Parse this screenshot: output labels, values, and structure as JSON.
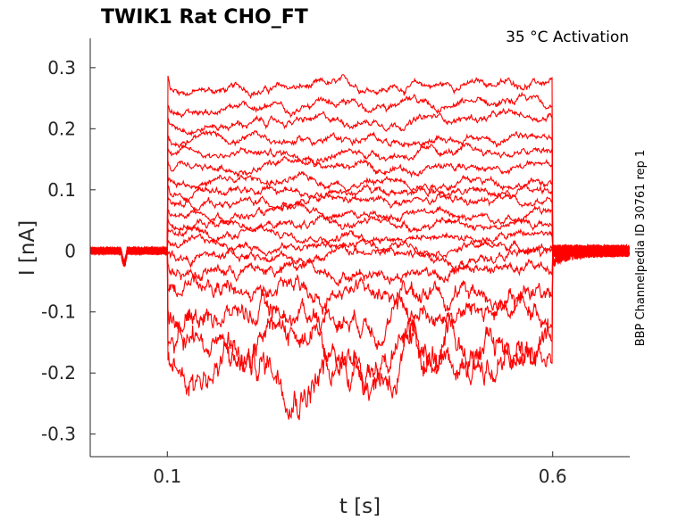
{
  "chart_data": {
    "type": "line",
    "title": "TWIK1  Rat  CHO_FT",
    "annotation": "35 °C  Activation",
    "side_label": "BBP Channelpedia ID 30761 rep 1",
    "xlabel": "t [s]",
    "ylabel": "I [nA]",
    "xlim": [
      0,
      0.7
    ],
    "ylim": [
      -0.337,
      0.348
    ],
    "xticks": [
      {
        "v": 0.1,
        "label": "0.1"
      },
      {
        "v": 0.6,
        "label": "0.6"
      }
    ],
    "yticks": [
      {
        "v": 0.3,
        "label": "0.3"
      },
      {
        "v": 0.2,
        "label": "0.2"
      },
      {
        "v": 0.1,
        "label": "0.1"
      },
      {
        "v": 0,
        "label": "0"
      },
      {
        "v": -0.1,
        "label": "-0.1"
      },
      {
        "v": -0.2,
        "label": "-0.2"
      },
      {
        "v": -0.3,
        "label": "-0.3"
      }
    ],
    "grid": false,
    "color": "#ff0000",
    "pulse": {
      "start": 0.1,
      "end": 0.6
    },
    "steady_levels_nA": [
      0.261,
      0.228,
      0.206,
      0.182,
      0.16,
      0.136,
      0.114,
      0.097,
      0.079,
      0.06,
      0.044,
      0.028,
      0.009,
      -0.009,
      -0.031,
      -0.067,
      -0.098,
      -0.152,
      -0.186
    ]
  }
}
